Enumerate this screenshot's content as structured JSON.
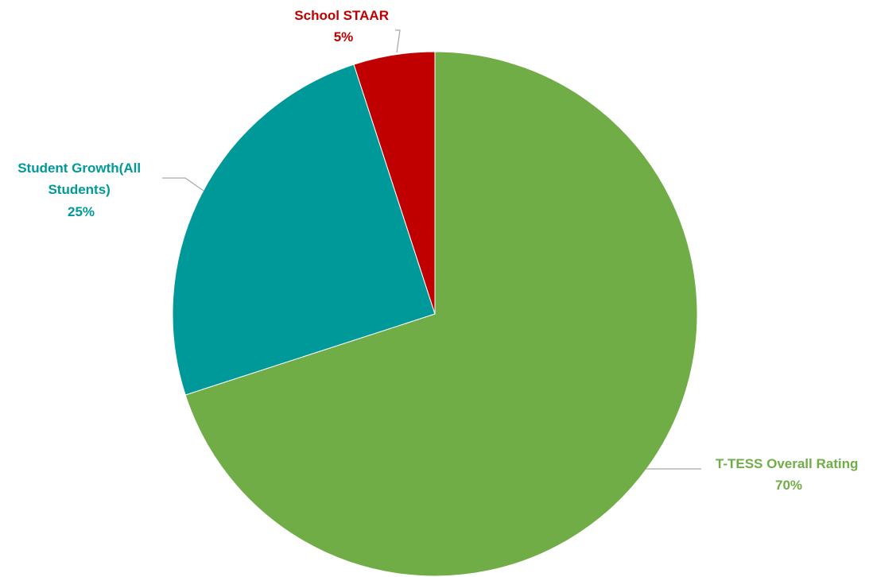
{
  "chart_data": {
    "type": "pie",
    "start_angle": "12 o'clock",
    "direction": "clockwise",
    "slices": [
      {
        "label_lines": [
          "T-TESS Overall Rating"
        ],
        "percent_label": "70%",
        "value": 70,
        "color": "#70ad47"
      },
      {
        "label_lines": [
          "Student Growth(All",
          "Students)"
        ],
        "percent_label": "25%",
        "value": 25,
        "color": "#009999"
      },
      {
        "label_lines": [
          "School STAAR"
        ],
        "percent_label": "5%",
        "value": 5,
        "color": "#c00000"
      }
    ]
  }
}
